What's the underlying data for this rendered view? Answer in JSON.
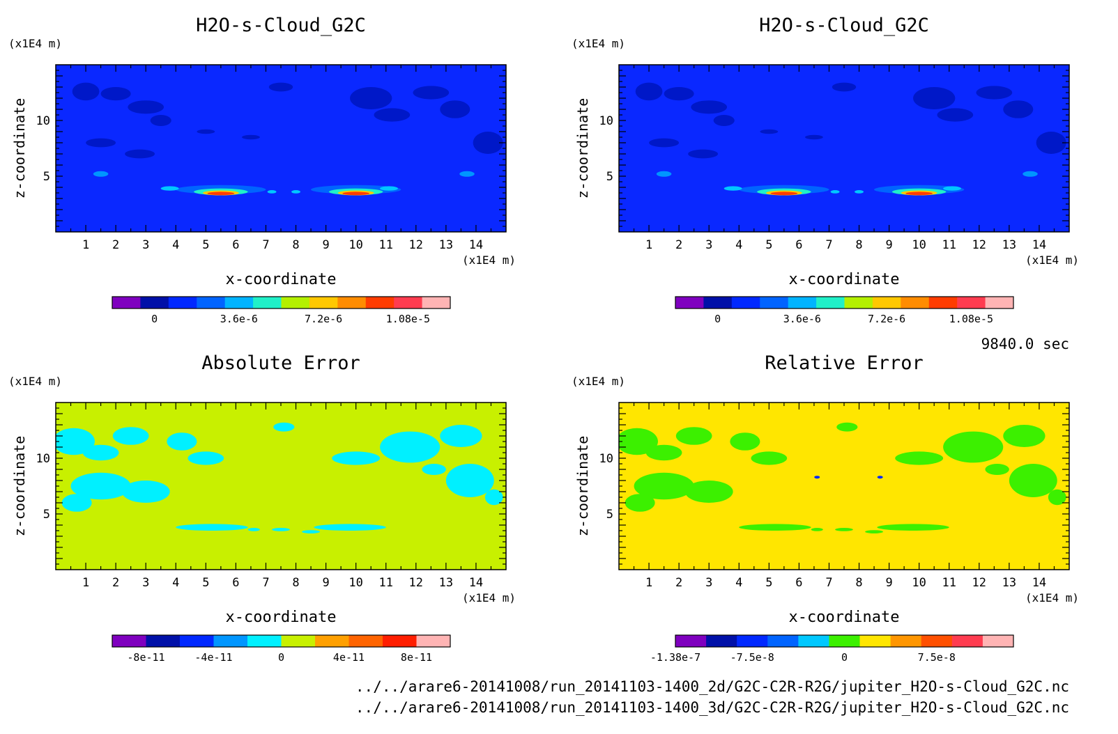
{
  "figure_time": "9840.0 sec",
  "file_paths": [
    "../../arare6-20141008/run_20141103-1400_2d/G2C-C2R-R2G/jupiter_H2O-s-Cloud_G2C.nc",
    "../../arare6-20141008/run_20141103-1400_3d/G2C-C2R-R2G/jupiter_H2O-s-Cloud_G2C.nc"
  ],
  "chart_data": [
    {
      "type": "heatmap",
      "title": "H2O-s-Cloud_G2C",
      "xlabel": "x-coordinate",
      "ylabel": "z-coordinate",
      "x_unit": "(x1E4 m)",
      "y_unit": "(x1E4 m)",
      "xlim": [
        0,
        15
      ],
      "ylim": [
        0,
        15
      ],
      "x_ticks": [
        "1",
        "2",
        "3",
        "4",
        "5",
        "6",
        "7",
        "8",
        "9",
        "10",
        "11",
        "12",
        "13",
        "14"
      ],
      "y_ticks": [
        "5",
        "10"
      ],
      "background_color": "#0a28ff",
      "colorbar": {
        "colors": [
          "#7f00bf",
          "#0010a8",
          "#0028ff",
          "#0064ff",
          "#00b4ff",
          "#20f0c8",
          "#b4f000",
          "#ffc800",
          "#ff8c00",
          "#ff3c00",
          "#ff3c50",
          "#ffb4b4"
        ],
        "tick_labels": [
          "0",
          "3.6e-6",
          "7.2e-6",
          "1.08e-5"
        ],
        "tick_positions": [
          1.5,
          4.5,
          7.5,
          10.5
        ]
      }
    },
    {
      "type": "heatmap",
      "title": "H2O-s-Cloud_G2C",
      "xlabel": "x-coordinate",
      "ylabel": "z-coordinate",
      "x_unit": "(x1E4 m)",
      "y_unit": "(x1E4 m)",
      "xlim": [
        0,
        15
      ],
      "ylim": [
        0,
        15
      ],
      "x_ticks": [
        "1",
        "2",
        "3",
        "4",
        "5",
        "6",
        "7",
        "8",
        "9",
        "10",
        "11",
        "12",
        "13",
        "14"
      ],
      "y_ticks": [
        "5",
        "10"
      ],
      "background_color": "#0a28ff",
      "colorbar": {
        "colors": [
          "#7f00bf",
          "#0010a8",
          "#0028ff",
          "#0064ff",
          "#00b4ff",
          "#20f0c8",
          "#b4f000",
          "#ffc800",
          "#ff8c00",
          "#ff3c00",
          "#ff3c50",
          "#ffb4b4"
        ],
        "tick_labels": [
          "0",
          "3.6e-6",
          "7.2e-6",
          "1.08e-5"
        ],
        "tick_positions": [
          1.5,
          4.5,
          7.5,
          10.5
        ]
      }
    },
    {
      "type": "heatmap",
      "title": "Absolute Error",
      "xlabel": "x-coordinate",
      "ylabel": "z-coordinate",
      "x_unit": "(x1E4 m)",
      "y_unit": "(x1E4 m)",
      "xlim": [
        0,
        15
      ],
      "ylim": [
        0,
        15
      ],
      "x_ticks": [
        "1",
        "2",
        "3",
        "4",
        "5",
        "6",
        "7",
        "8",
        "9",
        "10",
        "11",
        "12",
        "13",
        "14"
      ],
      "y_ticks": [
        "5",
        "10"
      ],
      "background_color": "#c8f000",
      "colorbar": {
        "colors": [
          "#7f00bf",
          "#0010a8",
          "#0028ff",
          "#0096ff",
          "#00f0ff",
          "#c8f000",
          "#ffa000",
          "#ff6400",
          "#ff1e00",
          "#ffb4b4"
        ],
        "tick_labels": [
          "-8e-11",
          "-4e-11",
          "0",
          "4e-11",
          "8e-11"
        ],
        "tick_positions": [
          1,
          3,
          5,
          7,
          9
        ]
      }
    },
    {
      "type": "heatmap",
      "title": "Relative Error",
      "xlabel": "x-coordinate",
      "ylabel": "z-coordinate",
      "x_unit": "(x1E4 m)",
      "y_unit": "(x1E4 m)",
      "xlim": [
        0,
        15
      ],
      "ylim": [
        0,
        15
      ],
      "x_ticks": [
        "1",
        "2",
        "3",
        "4",
        "5",
        "6",
        "7",
        "8",
        "9",
        "10",
        "11",
        "12",
        "13",
        "14"
      ],
      "y_ticks": [
        "5",
        "10"
      ],
      "background_color": "#ffe600",
      "colorbar": {
        "colors": [
          "#7f00bf",
          "#0010a8",
          "#0028ff",
          "#0064ff",
          "#00c8ff",
          "#3cf000",
          "#ffe600",
          "#ff9600",
          "#ff5000",
          "#ff3c50",
          "#ffb4b4"
        ],
        "tick_labels": [
          "-1.38e-7",
          "-7.5e-8",
          "0",
          "7.5e-8"
        ],
        "tick_positions": [
          0,
          2.5,
          5.5,
          8.5
        ]
      }
    }
  ]
}
